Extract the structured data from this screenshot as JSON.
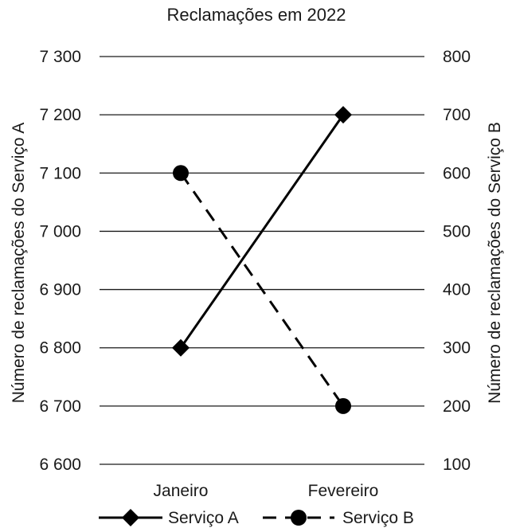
{
  "chart_data": {
    "type": "line",
    "title": "Reclamações em 2022",
    "categories": [
      "Janeiro",
      "Fevereiro"
    ],
    "ylabel_left": "Número de reclamações do Serviço A",
    "ylabel_right": "Número de reclamações do Serviço B",
    "y_left": {
      "lim": [
        6600,
        7300
      ],
      "ticks": [
        6600,
        6700,
        6800,
        6900,
        7000,
        7100,
        7200,
        7300
      ],
      "tick_labels": [
        "6 600",
        "6 700",
        "6 800",
        "6 900",
        "7 000",
        "7 100",
        "7 200",
        "7 300"
      ]
    },
    "y_right": {
      "lim": [
        100,
        800
      ],
      "ticks": [
        100,
        200,
        300,
        400,
        500,
        600,
        700,
        800
      ],
      "tick_labels": [
        "100",
        "200",
        "300",
        "400",
        "500",
        "600",
        "700",
        "800"
      ]
    },
    "grid": true,
    "legend_position": "bottom",
    "series": [
      {
        "name": "Serviço A",
        "axis": "left",
        "values": [
          6800,
          7200
        ],
        "marker": "diamond",
        "line_style": "solid",
        "color": "#000000"
      },
      {
        "name": "Serviço B",
        "axis": "right",
        "values": [
          600,
          200
        ],
        "marker": "circle",
        "line_style": "dashed",
        "color": "#000000"
      }
    ]
  }
}
